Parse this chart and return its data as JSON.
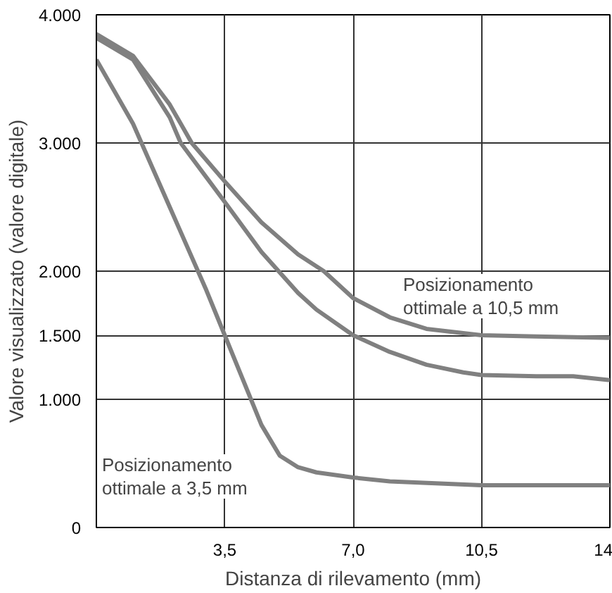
{
  "chart_data": {
    "type": "line",
    "xlabel": "Distanza di rilevamento (mm)",
    "ylabel": "Valore visualizzato (valore digitale)",
    "xlim": [
      0,
      14
    ],
    "ylim": [
      0,
      4000
    ],
    "xticks": [
      {
        "value": 3.5,
        "label": "3,5"
      },
      {
        "value": 7,
        "label": "7,0"
      },
      {
        "value": 10.5,
        "label": "10,5"
      },
      14
    ],
    "yticks": [
      0,
      {
        "value": 1000,
        "label": "1.000"
      },
      {
        "value": 1500,
        "label": "1.500"
      },
      {
        "value": 2000,
        "label": "2.000"
      },
      {
        "value": 3000,
        "label": "3.000"
      },
      {
        "value": 4000,
        "label": "4.000"
      }
    ],
    "grid": true,
    "marker": "none",
    "line_style": "solid",
    "series": [
      {
        "color": "#808080",
        "x": [
          0,
          1,
          2,
          3,
          3.5,
          4,
          4.5,
          5,
          5.5,
          6,
          7,
          8,
          10.5,
          14
        ],
        "values": [
          3650,
          3150,
          2500,
          1850,
          1500,
          1150,
          800,
          560,
          470,
          430,
          390,
          360,
          330,
          330
        ]
      },
      {
        "color": "#808080",
        "x": [
          0,
          1,
          2,
          2.3,
          3.5,
          4.5,
          5.5,
          6,
          7,
          8,
          9,
          10,
          10.5,
          12,
          13,
          14
        ],
        "values": [
          3820,
          3650,
          3200,
          3000,
          2540,
          2150,
          1830,
          1700,
          1500,
          1370,
          1270,
          1210,
          1190,
          1180,
          1180,
          1150
        ]
      },
      {
        "color": "#808080",
        "x": [
          0,
          1,
          2,
          2.6,
          3.5,
          4.5,
          5.5,
          6.2,
          7,
          8,
          9,
          10.5,
          12,
          14
        ],
        "values": [
          3850,
          3680,
          3300,
          3000,
          2700,
          2380,
          2130,
          2000,
          1790,
          1640,
          1550,
          1500,
          1490,
          1480
        ]
      }
    ],
    "annotations": [
      "Posizionamento\nottimale a 10,5 mm",
      "Posizionamento\nottimale a 3,5 mm"
    ]
  }
}
